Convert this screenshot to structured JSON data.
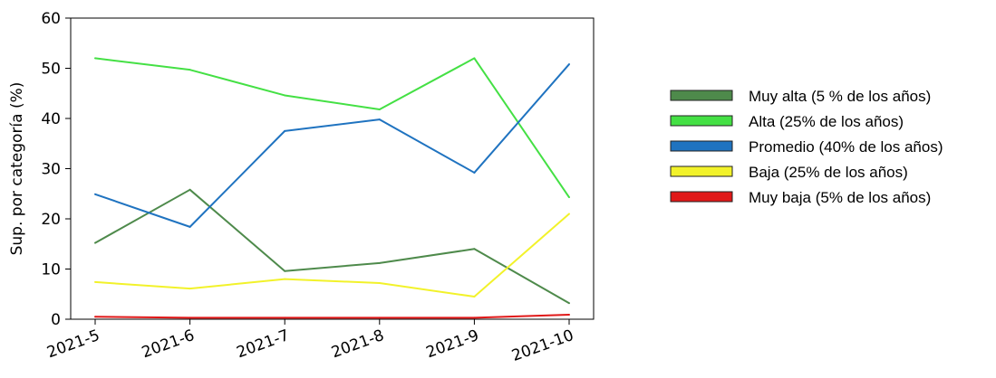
{
  "chart_data": {
    "type": "line",
    "title": "",
    "xlabel": "",
    "ylabel": "Sup. por categoría (%)",
    "categories": [
      "2021-5",
      "2021-6",
      "2021-7",
      "2021-8",
      "2021-9",
      "2021-10"
    ],
    "ylim": [
      0,
      60
    ],
    "yticks": [
      "0",
      "10",
      "20",
      "30",
      "40",
      "50",
      "60"
    ],
    "grid": false,
    "legend_position": "right",
    "series": [
      {
        "name": "Muy alta (5 % de los años)",
        "color": "#4e8a4b",
        "values": [
          15.2,
          25.8,
          9.6,
          11.2,
          14.0,
          3.2
        ]
      },
      {
        "name": "Alta (25% de los años)",
        "color": "#44e044",
        "values": [
          52.0,
          49.7,
          44.6,
          41.8,
          52.0,
          24.3
        ]
      },
      {
        "name": "Promedio (40% de los años)",
        "color": "#1f73c0",
        "values": [
          24.9,
          18.4,
          37.5,
          39.8,
          29.2,
          50.8
        ]
      },
      {
        "name": "Baja (25% de los años)",
        "color": "#f2f22a",
        "values": [
          7.4,
          6.1,
          8.0,
          7.2,
          4.5,
          21.0
        ]
      },
      {
        "name": "Muy baja (5% de los años)",
        "color": "#e01818",
        "values": [
          0.5,
          0.3,
          0.3,
          0.3,
          0.3,
          0.9
        ]
      }
    ]
  }
}
